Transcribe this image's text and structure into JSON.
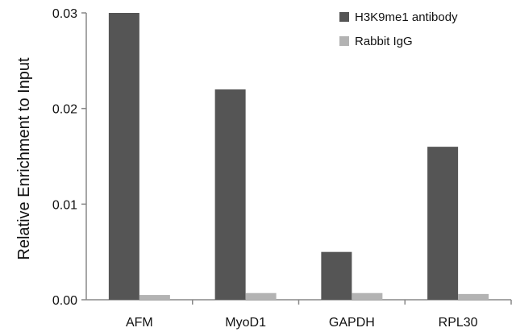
{
  "chart_data": {
    "type": "bar",
    "title": "",
    "xlabel": "",
    "ylabel": "Relative Enrichment to Input",
    "ylim": [
      0,
      0.03
    ],
    "yticks": [
      "0.00",
      "0.01",
      "0.02",
      "0.03"
    ],
    "categories": [
      "AFM",
      "MyoD1",
      "GAPDH",
      "RPL30"
    ],
    "series": [
      {
        "name": "H3K9me1 antibody",
        "color": "#555555",
        "values": [
          0.03,
          0.022,
          0.005,
          0.016
        ]
      },
      {
        "name": "Rabbit IgG",
        "color": "#b3b3b3",
        "values": [
          0.0005,
          0.0007,
          0.0007,
          0.0006
        ]
      }
    ],
    "legend_position": "top-right",
    "grid": false
  }
}
